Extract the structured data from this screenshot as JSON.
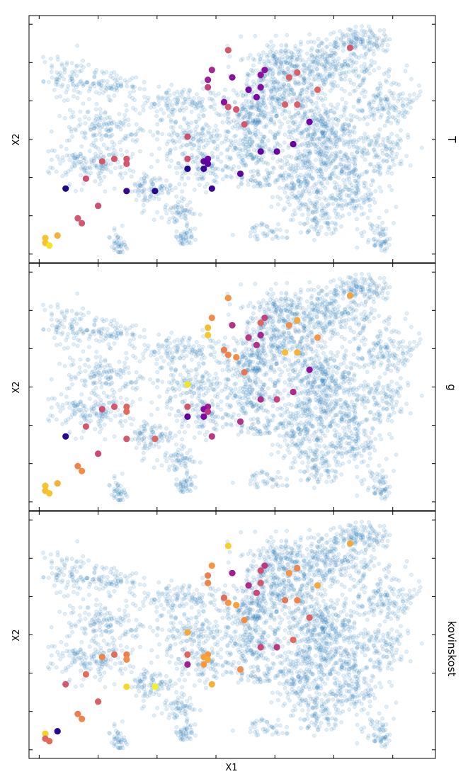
{
  "figure": {
    "xlabel": "X1",
    "ylabel": "X2",
    "panel_titles": [
      "T",
      "g",
      "kovinskost"
    ]
  },
  "colors": {
    "background_cloud": "#1f77b4",
    "palette_low": "#0d0887",
    "palette_mid": "#cc4778",
    "palette_high": "#f0f921"
  },
  "chart_data": {
    "type": "scatter",
    "title": "",
    "xlabel": "X1",
    "ylabel": "X2",
    "grid": false,
    "legend": "none",
    "tick_labels": "none",
    "panels": [
      {
        "name": "T",
        "highlight_points": [
          {
            "x": 0.13,
            "y": 0.79,
            "c": 0.55
          },
          {
            "x": 0.14,
            "y": 0.49,
            "c": 0.55
          },
          {
            "x": 0.25,
            "y": 0.64,
            "c": 0.58
          },
          {
            "x": 0.23,
            "y": 0.66,
            "c": 0.58
          },
          {
            "x": 0.3,
            "y": 0.71,
            "c": 0.6
          },
          {
            "x": 0.36,
            "y": 0.63,
            "c": 0.58
          },
          {
            "x": 0.36,
            "y": 0.66,
            "c": 0.58
          },
          {
            "x": 0.37,
            "y": 0.49,
            "c": 0.55
          },
          {
            "x": 0.38,
            "y": 0.51,
            "c": 0.55
          },
          {
            "x": 0.44,
            "y": 0.53,
            "c": 0.55
          },
          {
            "x": 0.49,
            "y": 0.39,
            "c": 0.52
          },
          {
            "x": 0.58,
            "y": 0.39,
            "c": 0.52
          },
          {
            "x": 0.58,
            "y": 0.24,
            "c": 0.55
          },
          {
            "x": 0.6,
            "y": 0.24,
            "c": 0.55
          },
          {
            "x": 0.58,
            "y": 0.21,
            "c": 0.55
          },
          {
            "x": 0.59,
            "y": 0.18,
            "c": 0.55
          },
          {
            "x": 0.66,
            "y": 0.14,
            "c": 0.52
          },
          {
            "x": 0.77,
            "y": 0.17,
            "c": 0.52
          },
          {
            "x": 0.82,
            "y": 0.12,
            "c": 0.55
          },
          {
            "x": 0.84,
            "y": 0.13,
            "c": 0.55
          },
          {
            "x": 0.89,
            "y": 0.07,
            "c": 0.82
          },
          {
            "x": 0.9,
            "y": 0.04,
            "c": 0.87
          },
          {
            "x": 0.92,
            "y": 0.04,
            "c": 0.87
          },
          {
            "x": 0.93,
            "y": 0.05,
            "c": 0.95
          },
          {
            "x": 0.29,
            "y": 0.44,
            "c": 0.48
          },
          {
            "x": 0.22,
            "y": 0.45,
            "c": 0.38
          },
          {
            "x": 0.26,
            "y": 0.44,
            "c": 0.35
          },
          {
            "x": 0.35,
            "y": 0.48,
            "c": 0.3
          },
          {
            "x": 0.25,
            "y": 0.5,
            "c": 0.3
          },
          {
            "x": 0.22,
            "y": 0.58,
            "c": 0.3
          },
          {
            "x": 0.29,
            "y": 0.57,
            "c": 0.28
          },
          {
            "x": 0.24,
            "y": 0.57,
            "c": 0.3
          },
          {
            "x": 0.3,
            "y": 0.54,
            "c": 0.25
          },
          {
            "x": 0.33,
            "y": 0.56,
            "c": 0.25
          },
          {
            "x": 0.43,
            "y": 0.69,
            "c": 0.22
          },
          {
            "x": 0.52,
            "y": 0.65,
            "c": 0.2
          },
          {
            "x": 0.55,
            "y": 0.61,
            "c": 0.2
          },
          {
            "x": 0.55,
            "y": 0.57,
            "c": 0.18
          },
          {
            "x": 0.58,
            "y": 0.44,
            "c": 0.22
          },
          {
            "x": 0.59,
            "y": 0.43,
            "c": 0.18
          },
          {
            "x": 0.62,
            "y": 0.43,
            "c": 0.1
          },
          {
            "x": 0.6,
            "y": 0.44,
            "c": 0.18
          },
          {
            "x": 0.7,
            "y": 0.45,
            "c": 0.1
          },
          {
            "x": 0.64,
            "y": 0.52,
            "c": 0.18
          },
          {
            "x": 0.71,
            "y": 0.24,
            "c": 0.1
          },
          {
            "x": 0.71,
            "y": 0.31,
            "c": 0.06
          },
          {
            "x": 0.62,
            "y": 0.39,
            "c": 0.03
          },
          {
            "x": 0.7,
            "y": 0.09,
            "c": 0.03
          }
        ]
      },
      {
        "name": "g",
        "highlight_points": [
          {
            "x": 0.13,
            "y": 0.79,
            "c": 0.78
          },
          {
            "x": 0.14,
            "y": 0.49,
            "c": 0.74
          },
          {
            "x": 0.25,
            "y": 0.64,
            "c": 0.72
          },
          {
            "x": 0.23,
            "y": 0.66,
            "c": 0.8
          },
          {
            "x": 0.3,
            "y": 0.71,
            "c": 0.75
          },
          {
            "x": 0.36,
            "y": 0.63,
            "c": 0.85
          },
          {
            "x": 0.36,
            "y": 0.66,
            "c": 0.82
          },
          {
            "x": 0.37,
            "y": 0.49,
            "c": 0.7
          },
          {
            "x": 0.38,
            "y": 0.51,
            "c": 0.72
          },
          {
            "x": 0.44,
            "y": 0.53,
            "c": 0.65
          },
          {
            "x": 0.49,
            "y": 0.39,
            "c": 0.95
          },
          {
            "x": 0.58,
            "y": 0.39,
            "c": 0.55
          },
          {
            "x": 0.58,
            "y": 0.24,
            "c": 0.6
          },
          {
            "x": 0.6,
            "y": 0.24,
            "c": 0.62
          },
          {
            "x": 0.58,
            "y": 0.21,
            "c": 0.55
          },
          {
            "x": 0.59,
            "y": 0.18,
            "c": 0.52
          },
          {
            "x": 0.66,
            "y": 0.14,
            "c": 0.55
          },
          {
            "x": 0.77,
            "y": 0.17,
            "c": 0.5
          },
          {
            "x": 0.82,
            "y": 0.12,
            "c": 0.7
          },
          {
            "x": 0.84,
            "y": 0.13,
            "c": 0.72
          },
          {
            "x": 0.89,
            "y": 0.07,
            "c": 0.82
          },
          {
            "x": 0.9,
            "y": 0.04,
            "c": 0.87
          },
          {
            "x": 0.92,
            "y": 0.04,
            "c": 0.85
          },
          {
            "x": 0.93,
            "y": 0.05,
            "c": 0.87
          },
          {
            "x": 0.29,
            "y": 0.44,
            "c": 0.88
          },
          {
            "x": 0.22,
            "y": 0.45,
            "c": 0.72
          },
          {
            "x": 0.26,
            "y": 0.44,
            "c": 0.85
          },
          {
            "x": 0.35,
            "y": 0.48,
            "c": 0.68
          },
          {
            "x": 0.25,
            "y": 0.5,
            "c": 0.42
          },
          {
            "x": 0.22,
            "y": 0.58,
            "c": 0.48
          },
          {
            "x": 0.29,
            "y": 0.57,
            "c": 0.38
          },
          {
            "x": 0.24,
            "y": 0.57,
            "c": 0.6
          },
          {
            "x": 0.3,
            "y": 0.54,
            "c": 0.45
          },
          {
            "x": 0.33,
            "y": 0.56,
            "c": 0.42
          },
          {
            "x": 0.43,
            "y": 0.69,
            "c": 0.3
          },
          {
            "x": 0.52,
            "y": 0.65,
            "c": 0.4
          },
          {
            "x": 0.55,
            "y": 0.61,
            "c": 0.48
          },
          {
            "x": 0.55,
            "y": 0.57,
            "c": 0.4
          },
          {
            "x": 0.58,
            "y": 0.44,
            "c": 0.35
          },
          {
            "x": 0.59,
            "y": 0.43,
            "c": 0.28
          },
          {
            "x": 0.62,
            "y": 0.43,
            "c": 0.25
          },
          {
            "x": 0.6,
            "y": 0.44,
            "c": 0.45
          },
          {
            "x": 0.7,
            "y": 0.45,
            "c": 0.45
          },
          {
            "x": 0.64,
            "y": 0.52,
            "c": 0.42
          },
          {
            "x": 0.71,
            "y": 0.24,
            "c": 0.55
          },
          {
            "x": 0.71,
            "y": 0.31,
            "c": 0.6
          },
          {
            "x": 0.62,
            "y": 0.39,
            "c": 0.18
          },
          {
            "x": 0.7,
            "y": 0.09,
            "c": 0.05
          }
        ]
      },
      {
        "name": "kovinskost",
        "highlight_points": [
          {
            "x": 0.13,
            "y": 0.79,
            "c": 0.8
          },
          {
            "x": 0.14,
            "y": 0.49,
            "c": 0.9
          },
          {
            "x": 0.25,
            "y": 0.64,
            "c": 0.75
          },
          {
            "x": 0.23,
            "y": 0.66,
            "c": 0.7
          },
          {
            "x": 0.3,
            "y": 0.71,
            "c": 0.8
          },
          {
            "x": 0.36,
            "y": 0.63,
            "c": 0.65
          },
          {
            "x": 0.36,
            "y": 0.66,
            "c": 0.7
          },
          {
            "x": 0.37,
            "y": 0.49,
            "c": 0.75
          },
          {
            "x": 0.38,
            "y": 0.51,
            "c": 0.78
          },
          {
            "x": 0.44,
            "y": 0.53,
            "c": 0.72
          },
          {
            "x": 0.49,
            "y": 0.39,
            "c": 0.8
          },
          {
            "x": 0.58,
            "y": 0.39,
            "c": 0.6
          },
          {
            "x": 0.58,
            "y": 0.24,
            "c": 0.68
          },
          {
            "x": 0.6,
            "y": 0.24,
            "c": 0.72
          },
          {
            "x": 0.58,
            "y": 0.21,
            "c": 0.62
          },
          {
            "x": 0.59,
            "y": 0.18,
            "c": 0.7
          },
          {
            "x": 0.66,
            "y": 0.14,
            "c": 0.62
          },
          {
            "x": 0.77,
            "y": 0.17,
            "c": 0.58
          },
          {
            "x": 0.82,
            "y": 0.12,
            "c": 0.68
          },
          {
            "x": 0.84,
            "y": 0.13,
            "c": 0.7
          },
          {
            "x": 0.89,
            "y": 0.07,
            "c": 0.05
          },
          {
            "x": 0.9,
            "y": 0.04,
            "c": 0.9
          },
          {
            "x": 0.92,
            "y": 0.04,
            "c": 0.6
          },
          {
            "x": 0.93,
            "y": 0.05,
            "c": 0.62
          },
          {
            "x": 0.29,
            "y": 0.44,
            "c": 0.7
          },
          {
            "x": 0.22,
            "y": 0.45,
            "c": 0.75
          },
          {
            "x": 0.26,
            "y": 0.44,
            "c": 0.68
          },
          {
            "x": 0.35,
            "y": 0.48,
            "c": 0.62
          },
          {
            "x": 0.25,
            "y": 0.5,
            "c": 0.35
          },
          {
            "x": 0.22,
            "y": 0.58,
            "c": 0.45
          },
          {
            "x": 0.29,
            "y": 0.57,
            "c": 0.55
          },
          {
            "x": 0.24,
            "y": 0.57,
            "c": 0.52
          },
          {
            "x": 0.3,
            "y": 0.54,
            "c": 0.4
          },
          {
            "x": 0.33,
            "y": 0.56,
            "c": 0.5
          },
          {
            "x": 0.43,
            "y": 0.69,
            "c": 0.58
          },
          {
            "x": 0.52,
            "y": 0.65,
            "c": 0.62
          },
          {
            "x": 0.55,
            "y": 0.61,
            "c": 0.45
          },
          {
            "x": 0.55,
            "y": 0.57,
            "c": 0.5
          },
          {
            "x": 0.58,
            "y": 0.44,
            "c": 0.75
          },
          {
            "x": 0.59,
            "y": 0.43,
            "c": 0.78
          },
          {
            "x": 0.62,
            "y": 0.43,
            "c": 0.76
          },
          {
            "x": 0.6,
            "y": 0.44,
            "c": 0.8
          },
          {
            "x": 0.7,
            "y": 0.45,
            "c": 0.82
          },
          {
            "x": 0.64,
            "y": 0.52,
            "c": 0.72
          },
          {
            "x": 0.71,
            "y": 0.24,
            "c": 0.92
          },
          {
            "x": 0.71,
            "y": 0.31,
            "c": 0.98
          },
          {
            "x": 0.62,
            "y": 0.39,
            "c": 0.35
          },
          {
            "x": 0.7,
            "y": 0.09,
            "c": 0.55
          }
        ]
      }
    ]
  }
}
